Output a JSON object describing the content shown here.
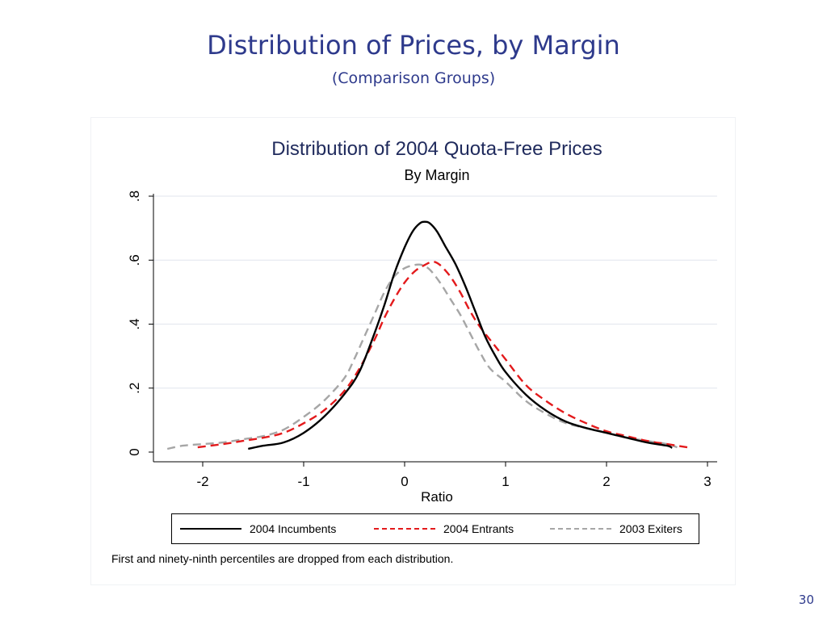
{
  "slide": {
    "title": "Distribution of Prices, by Margin",
    "subtitle": "(Comparison Groups)",
    "page_number": "30"
  },
  "chart_data": {
    "type": "line",
    "title": "Distribution of 2004 Quota-Free Prices",
    "subtitle": "By Margin",
    "xlabel": "Ratio",
    "ylabel": "",
    "xlim": [
      -2.4,
      3.0
    ],
    "ylim": [
      0,
      0.8
    ],
    "x_ticks": [
      -2,
      -1,
      0,
      1,
      2,
      3
    ],
    "x_tick_labels": [
      "-2",
      "-1",
      "0",
      "1",
      "2",
      "3"
    ],
    "y_ticks": [
      0,
      0.2,
      0.4,
      0.6,
      0.8
    ],
    "y_tick_labels": [
      "0",
      ".2",
      ".4",
      ".6",
      ".8"
    ],
    "grid": "horizontal",
    "legend_position": "bottom",
    "note": "First and ninety-ninth percentiles are dropped from each distribution.",
    "series": [
      {
        "name": "2004 Incumbents",
        "color": "#000000",
        "dash": "solid",
        "points": [
          [
            -1.55,
            0.01
          ],
          [
            -1.4,
            0.02
          ],
          [
            -1.2,
            0.03
          ],
          [
            -1.0,
            0.06
          ],
          [
            -0.8,
            0.11
          ],
          [
            -0.6,
            0.18
          ],
          [
            -0.45,
            0.25
          ],
          [
            -0.3,
            0.37
          ],
          [
            -0.2,
            0.46
          ],
          [
            -0.1,
            0.56
          ],
          [
            0.0,
            0.64
          ],
          [
            0.08,
            0.69
          ],
          [
            0.15,
            0.715
          ],
          [
            0.2,
            0.72
          ],
          [
            0.25,
            0.715
          ],
          [
            0.32,
            0.69
          ],
          [
            0.4,
            0.645
          ],
          [
            0.5,
            0.59
          ],
          [
            0.6,
            0.52
          ],
          [
            0.7,
            0.44
          ],
          [
            0.8,
            0.36
          ],
          [
            0.9,
            0.3
          ],
          [
            1.0,
            0.25
          ],
          [
            1.2,
            0.18
          ],
          [
            1.4,
            0.13
          ],
          [
            1.6,
            0.095
          ],
          [
            1.8,
            0.075
          ],
          [
            2.0,
            0.06
          ],
          [
            2.2,
            0.045
          ],
          [
            2.4,
            0.03
          ],
          [
            2.6,
            0.02
          ],
          [
            2.65,
            0.013
          ]
        ]
      },
      {
        "name": "2004 Entrants",
        "color": "#e31a1c",
        "dash": "dashed",
        "points": [
          [
            -2.05,
            0.015
          ],
          [
            -1.8,
            0.025
          ],
          [
            -1.6,
            0.035
          ],
          [
            -1.4,
            0.045
          ],
          [
            -1.2,
            0.06
          ],
          [
            -1.0,
            0.09
          ],
          [
            -0.8,
            0.13
          ],
          [
            -0.6,
            0.19
          ],
          [
            -0.45,
            0.26
          ],
          [
            -0.3,
            0.35
          ],
          [
            -0.2,
            0.42
          ],
          [
            -0.1,
            0.48
          ],
          [
            0.0,
            0.53
          ],
          [
            0.1,
            0.565
          ],
          [
            0.2,
            0.585
          ],
          [
            0.28,
            0.595
          ],
          [
            0.35,
            0.585
          ],
          [
            0.45,
            0.55
          ],
          [
            0.55,
            0.5
          ],
          [
            0.65,
            0.44
          ],
          [
            0.75,
            0.39
          ],
          [
            0.9,
            0.33
          ],
          [
            1.0,
            0.29
          ],
          [
            1.2,
            0.21
          ],
          [
            1.4,
            0.16
          ],
          [
            1.6,
            0.12
          ],
          [
            1.8,
            0.09
          ],
          [
            2.0,
            0.065
          ],
          [
            2.2,
            0.05
          ],
          [
            2.4,
            0.035
          ],
          [
            2.6,
            0.025
          ],
          [
            2.8,
            0.015
          ]
        ]
      },
      {
        "name": "2003 Exiters",
        "color": "#a6a6a6",
        "dash": "dashed",
        "points": [
          [
            -2.35,
            0.01
          ],
          [
            -2.2,
            0.02
          ],
          [
            -2.0,
            0.025
          ],
          [
            -1.8,
            0.03
          ],
          [
            -1.6,
            0.04
          ],
          [
            -1.4,
            0.05
          ],
          [
            -1.2,
            0.07
          ],
          [
            -1.0,
            0.11
          ],
          [
            -0.8,
            0.16
          ],
          [
            -0.6,
            0.23
          ],
          [
            -0.5,
            0.29
          ],
          [
            -0.4,
            0.36
          ],
          [
            -0.3,
            0.43
          ],
          [
            -0.2,
            0.5
          ],
          [
            -0.1,
            0.55
          ],
          [
            0.0,
            0.575
          ],
          [
            0.1,
            0.585
          ],
          [
            0.17,
            0.585
          ],
          [
            0.25,
            0.57
          ],
          [
            0.35,
            0.53
          ],
          [
            0.45,
            0.48
          ],
          [
            0.55,
            0.43
          ],
          [
            0.65,
            0.37
          ],
          [
            0.75,
            0.31
          ],
          [
            0.85,
            0.26
          ],
          [
            1.0,
            0.22
          ],
          [
            1.2,
            0.16
          ],
          [
            1.4,
            0.12
          ],
          [
            1.6,
            0.09
          ],
          [
            1.8,
            0.075
          ],
          [
            2.0,
            0.06
          ],
          [
            2.2,
            0.045
          ],
          [
            2.4,
            0.035
          ],
          [
            2.6,
            0.025
          ],
          [
            2.7,
            0.015
          ]
        ]
      }
    ]
  }
}
